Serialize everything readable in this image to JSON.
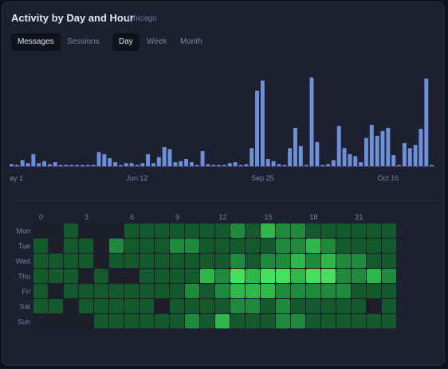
{
  "header": {
    "title": "Activity by Day and Hour",
    "subtitle": "Chicago"
  },
  "metric_tabs": [
    {
      "label": "Messages",
      "active": true
    },
    {
      "label": "Sessions",
      "active": false
    }
  ],
  "period_tabs": [
    {
      "label": "Day",
      "active": true
    },
    {
      "label": "Week",
      "active": false
    },
    {
      "label": "Month",
      "active": false
    }
  ],
  "colors": {
    "bar": "#6f8fd8",
    "heat_empty": "#1c1e2a",
    "heat_scale": [
      "#0f3a24",
      "#145a2c",
      "#1d8a3c",
      "#2fb84a",
      "#46e05c"
    ]
  },
  "chart_data": [
    {
      "type": "bar",
      "title": "",
      "xlabel": "",
      "ylabel": "",
      "tick_labels": [
        {
          "label": "ay 1",
          "index": 0
        },
        {
          "label": "Jun 12",
          "index": 23
        },
        {
          "label": "Sep 25",
          "index": 46
        },
        {
          "label": "Oct 16",
          "index": 69
        }
      ],
      "values": [
        2,
        1,
        6,
        3,
        12,
        3,
        5,
        2,
        4,
        1,
        0,
        1,
        1,
        0,
        1,
        0,
        14,
        12,
        8,
        4,
        1,
        3,
        3,
        1,
        3,
        12,
        3,
        9,
        19,
        17,
        4,
        5,
        7,
        4,
        1,
        15,
        2,
        1,
        0,
        1,
        3,
        4,
        0,
        2,
        18,
        75,
        85,
        7,
        5,
        2,
        1,
        18,
        38,
        20,
        1,
        88,
        24,
        1,
        2,
        6,
        40,
        18,
        12,
        10,
        4,
        28,
        41,
        30,
        35,
        38,
        11,
        1,
        23,
        18,
        21,
        37,
        87,
        0
      ],
      "ylim": [
        0,
        90
      ]
    },
    {
      "type": "heatmap",
      "title": "",
      "x_tick_labels": [
        "0",
        "3",
        "6",
        "9",
        "12",
        "15",
        "18",
        "21"
      ],
      "x_tick_hours": [
        0,
        3,
        6,
        9,
        12,
        15,
        18,
        21
      ],
      "rows": [
        "Mon",
        "Tue",
        "Wed",
        "Thu",
        "Fri",
        "Sat",
        "Sun"
      ],
      "columns": 24,
      "levels": [
        [
          0,
          0,
          1,
          0,
          0,
          0,
          1,
          1,
          1,
          1,
          1,
          1,
          1,
          2,
          1,
          3,
          2,
          2,
          1,
          1,
          1,
          1,
          1,
          1
        ],
        [
          1,
          0,
          1,
          1,
          0,
          2,
          1,
          1,
          1,
          2,
          2,
          1,
          1,
          1,
          1,
          1,
          2,
          2,
          3,
          2,
          1,
          1,
          1,
          1
        ],
        [
          1,
          1,
          1,
          1,
          0,
          1,
          1,
          1,
          1,
          1,
          1,
          1,
          1,
          2,
          1,
          2,
          2,
          3,
          2,
          3,
          2,
          2,
          1,
          1
        ],
        [
          1,
          1,
          1,
          0,
          1,
          0,
          0,
          1,
          1,
          1,
          1,
          3,
          2,
          4,
          3,
          4,
          4,
          3,
          4,
          4,
          2,
          2,
          3,
          2
        ],
        [
          1,
          0,
          1,
          1,
          1,
          1,
          1,
          1,
          1,
          1,
          2,
          1,
          2,
          3,
          3,
          3,
          2,
          2,
          2,
          2,
          2,
          1,
          1,
          1
        ],
        [
          1,
          1,
          0,
          1,
          1,
          1,
          1,
          1,
          0,
          1,
          1,
          1,
          1,
          2,
          2,
          1,
          2,
          1,
          1,
          1,
          1,
          1,
          0,
          1
        ],
        [
          0,
          0,
          0,
          0,
          1,
          1,
          1,
          1,
          1,
          1,
          2,
          1,
          3,
          1,
          1,
          1,
          2,
          2,
          1,
          1,
          1,
          1,
          1,
          1
        ]
      ]
    }
  ]
}
